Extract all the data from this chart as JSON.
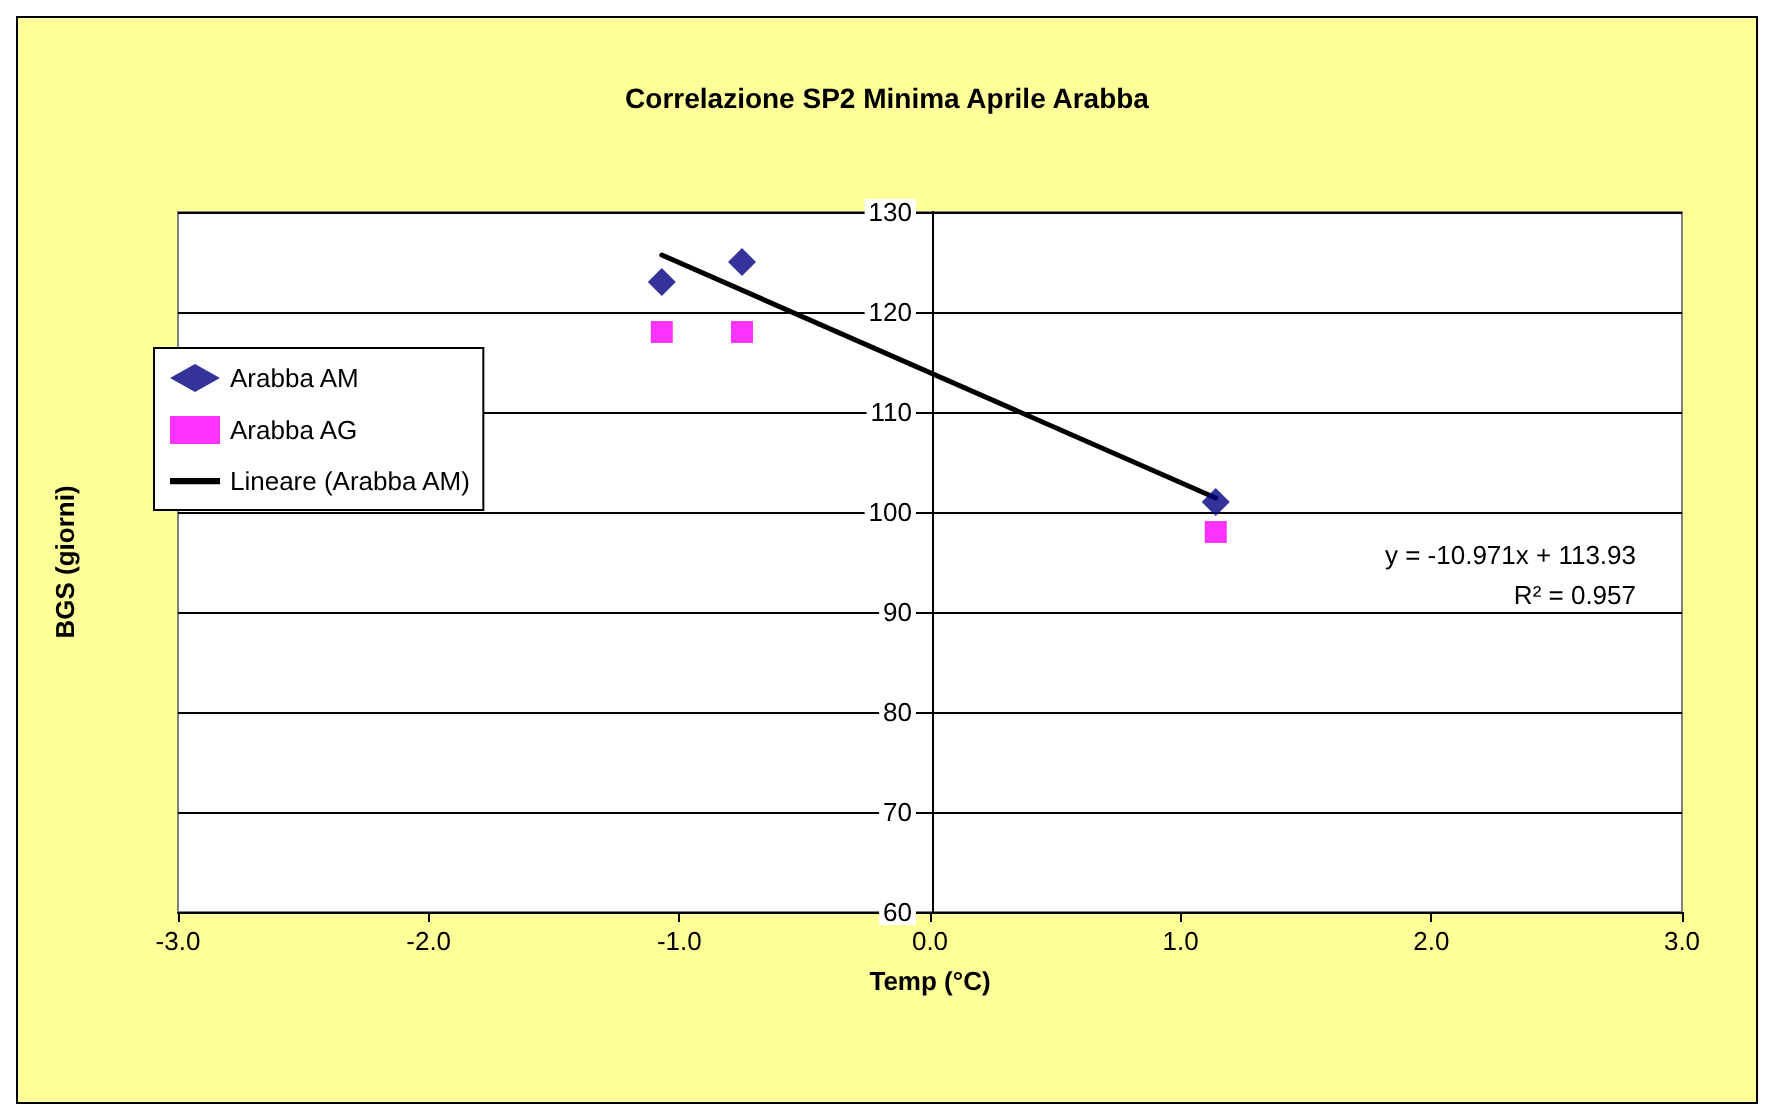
{
  "chart_data": {
    "type": "scatter",
    "title": "Correlazione SP2 Minima Aprile Arabba",
    "xlabel": "Temp (°C)",
    "ylabel": "BGS (giorni)",
    "series": [
      {
        "name": "Arabba AM",
        "color": "#000080",
        "marker": "diamond",
        "x": [
          -1.07,
          -0.75,
          1.14
        ],
        "values": [
          123,
          125,
          101
        ]
      },
      {
        "name": "Arabba AG",
        "color": "#ff00ff",
        "marker": "square",
        "x": [
          -1.07,
          -0.75,
          1.14
        ],
        "values": [
          118,
          118,
          98
        ]
      },
      {
        "name": "Lineare (Arabba AM)",
        "type": "line",
        "color": "#000000",
        "marker": "none",
        "line_style": "solid",
        "x": [
          -1.07,
          1.14
        ],
        "values": [
          125.7,
          101.4
        ]
      }
    ],
    "xlim": [
      -3,
      3
    ],
    "xticks": [
      {
        "value": -3,
        "label": "-3.0"
      },
      {
        "value": -2,
        "label": "-2.0"
      },
      {
        "value": -1,
        "label": "-1.0"
      },
      {
        "value": 0,
        "label": "0.0"
      },
      {
        "value": 1,
        "label": "1.0"
      },
      {
        "value": 2,
        "label": "2.0"
      },
      {
        "value": 3,
        "label": "3.0"
      }
    ],
    "ylim": [
      60,
      130
    ],
    "yticks": [
      60,
      70,
      80,
      90,
      100,
      110,
      120,
      130
    ],
    "grid": "y",
    "legend": "left",
    "annotations": [
      "y = -10.971x + 113.93",
      "R² = 0.957"
    ]
  }
}
